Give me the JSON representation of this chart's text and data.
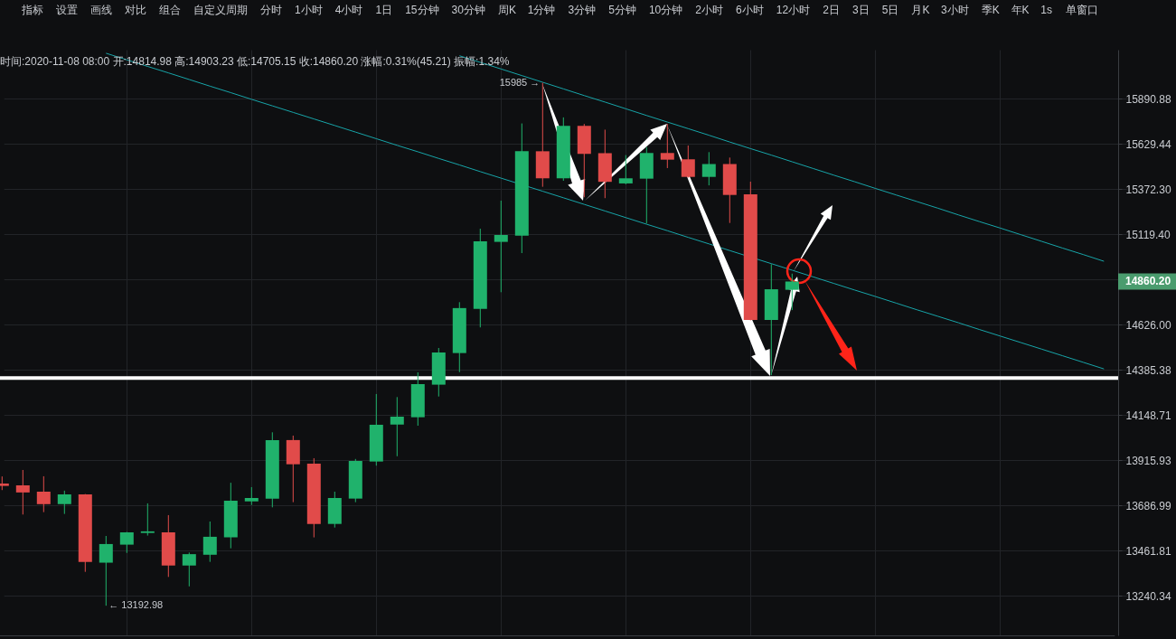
{
  "chart_data": {
    "type": "candlestick",
    "subtitle": "时间:2020-11-08 08:00 开:14814.98 高:14903.23 低:14705.15 收:14860.20 涨幅:0.31%(45.21) 振幅:1.34%",
    "categories": [
      null,
      null,
      null,
      null,
      null,
      null,
      null,
      null,
      null,
      null,
      null,
      null,
      null,
      null,
      null,
      null,
      null,
      null,
      null,
      null,
      null,
      null,
      null,
      null,
      null,
      null,
      null,
      null,
      null,
      null,
      null,
      null,
      null,
      null,
      null,
      null,
      null,
      null,
      null,
      null,
      null,
      null,
      null,
      null,
      null,
      null,
      null,
      null,
      null,
      null,
      null,
      null,
      null,
      null
    ],
    "ylim": [
      13050,
      16180
    ],
    "yticks": [
      {
        "value": 15890.88,
        "label": "15890.88"
      },
      {
        "value": 15629.44,
        "label": "15629.44"
      },
      {
        "value": 15372.3,
        "label": "15372.30"
      },
      {
        "value": 15119.4,
        "label": "15119.40"
      },
      {
        "value": 14870.65,
        "label": null
      },
      {
        "value": 14626.0,
        "label": "14626.00"
      },
      {
        "value": 14385.38,
        "label": "14385.38"
      },
      {
        "value": 14148.71,
        "label": "14148.71"
      },
      {
        "value": 13915.93,
        "label": "13915.93"
      },
      {
        "value": 13686.99,
        "label": "13686.99"
      },
      {
        "value": 13461.81,
        "label": "13461.81"
      },
      {
        "value": 13240.34,
        "label": "13240.34"
      }
    ],
    "log": "y",
    "grid": true,
    "tick_labels": "y",
    "ohlc": [
      [
        13798,
        13834,
        13765,
        13786
      ],
      [
        13789,
        13867,
        13642,
        13753
      ],
      [
        13757,
        13835,
        13654,
        13694
      ],
      [
        13694,
        13762,
        13645,
        13743
      ],
      [
        13743,
        13745,
        13358,
        13407
      ],
      [
        13403,
        13535,
        13192.98,
        13495
      ],
      [
        13492,
        13555,
        13451,
        13553
      ],
      [
        13550,
        13698,
        13537,
        13558
      ],
      [
        13553,
        13639,
        13333,
        13389
      ],
      [
        13389,
        13453,
        13287,
        13445
      ],
      [
        13442,
        13607,
        13407,
        13531
      ],
      [
        13528,
        13802,
        13474,
        13711
      ],
      [
        13708,
        13780,
        13690,
        13725
      ],
      [
        13722,
        14060,
        13678,
        14020
      ],
      [
        14020,
        14043,
        13704,
        13896
      ],
      [
        13899,
        13927,
        13528,
        13595
      ],
      [
        13595,
        13757,
        13577,
        13725
      ],
      [
        13722,
        13923,
        13704,
        13913
      ],
      [
        13910,
        14259,
        13889,
        14099
      ],
      [
        14100,
        14243,
        13937,
        14141
      ],
      [
        14138,
        14373,
        14094,
        14311
      ],
      [
        14308,
        14502,
        14246,
        14478
      ],
      [
        14475,
        14748,
        14374,
        14716
      ],
      [
        14712,
        15151,
        14612,
        15081
      ],
      [
        15078,
        15308,
        14802,
        15116
      ],
      [
        15112,
        15748,
        15016,
        15588
      ],
      [
        15588,
        15985,
        15386,
        15434
      ],
      [
        15434,
        15783,
        15420,
        15734
      ],
      [
        15734,
        15745,
        15327,
        15573
      ],
      [
        15577,
        15712,
        15322,
        15414
      ],
      [
        15405,
        15566,
        15400,
        15434
      ],
      [
        15432,
        15612,
        15180,
        15578
      ],
      [
        15578,
        15745,
        15492,
        15540
      ],
      [
        15542,
        15621,
        15438,
        15442
      ],
      [
        15442,
        15583,
        15394,
        15515
      ],
      [
        15515,
        15552,
        15183,
        15340
      ],
      [
        15344,
        15415,
        14650,
        14652
      ],
      [
        14652,
        14955,
        14358,
        14818
      ],
      [
        14814.98,
        14903.23,
        14705.15,
        14860.2
      ],
      null,
      null,
      null,
      null,
      null,
      null,
      null,
      null,
      null,
      null,
      null,
      null,
      null,
      null,
      null
    ],
    "colors": [
      "#e14b4a",
      "#e14b4a",
      "#e14b4a",
      "#20b26c",
      "#e14b4a",
      "#20b26c",
      "#20b26c",
      "#20b26c",
      "#e14b4a",
      "#20b26c",
      "#20b26c",
      "#20b26c",
      "#20b26c",
      "#20b26c",
      "#e14b4a",
      "#e14b4a",
      "#20b26c",
      "#20b26c",
      "#20b26c",
      "#20b26c",
      "#20b26c",
      "#20b26c",
      "#20b26c",
      "#20b26c",
      "#20b26c",
      "#20b26c",
      "#e14b4a",
      "#20b26c",
      "#e14b4a",
      "#e14b4a",
      "#20b26c",
      "#20b26c",
      "#e14b4a",
      "#e14b4a",
      "#20b26c",
      "#e14b4a",
      "#e14b4a",
      "#20b26c",
      "#20b26c",
      null,
      null,
      null,
      null,
      null,
      null,
      null,
      null,
      null,
      null,
      null,
      null,
      null,
      null,
      null
    ],
    "series": [
      {
        "type": "line",
        "color": "#17a4a8",
        "values": [
          null,
          null,
          null,
          null,
          null,
          16159,
          16120,
          16081,
          16043,
          16004,
          15965,
          15927,
          15888,
          15850,
          15812,
          15774,
          15736,
          15698,
          15660,
          15622,
          15585,
          15547,
          15510,
          15472,
          15435,
          null,
          15361,
          15324,
          15287,
          15250,
          15213,
          15176,
          15140,
          15103,
          15067,
          15030,
          null,
          14958,
          14922,
          14886,
          14850,
          14814,
          14779,
          14743,
          14707,
          14672,
          14637,
          14601,
          14566,
          14531,
          14496,
          14461,
          14426,
          14391
        ]
      },
      {
        "type": "line",
        "color": "#17a4a8",
        "values": [
          null,
          null,
          null,
          null,
          null,
          null,
          null,
          null,
          null,
          null,
          null,
          null,
          null,
          null,
          null,
          null,
          null,
          null,
          null,
          null,
          null,
          null,
          16144,
          16105,
          16066,
          16027,
          15988,
          15949,
          15910,
          15872,
          15833,
          15794,
          15756,
          15718,
          15680,
          15641,
          15603,
          15566,
          15528,
          15490,
          15452,
          15415,
          15377,
          15340,
          15303,
          15266,
          15228,
          15191,
          15155,
          15118,
          15081,
          15044,
          15008,
          14971
        ]
      }
    ],
    "ref_lines": [
      {
        "axis": "y",
        "value": 14343,
        "color": "#ffffff"
      }
    ],
    "annotations": [
      "指标",
      "设置",
      "画线",
      "对比",
      "组合",
      "自定义周期",
      "分时",
      "1小时",
      "4小时",
      "1日",
      "15分钟",
      "30分钟",
      "周K",
      "1分钟",
      "3分钟",
      "5分钟",
      "10分钟",
      "2小时",
      "6小时",
      "12小时",
      "2日",
      "3日",
      "5日",
      "月K",
      "3小时",
      "季K",
      "年K",
      "1s",
      "单窗口",
      "15985 →",
      "← 13192.98",
      "14860.20"
    ]
  }
}
